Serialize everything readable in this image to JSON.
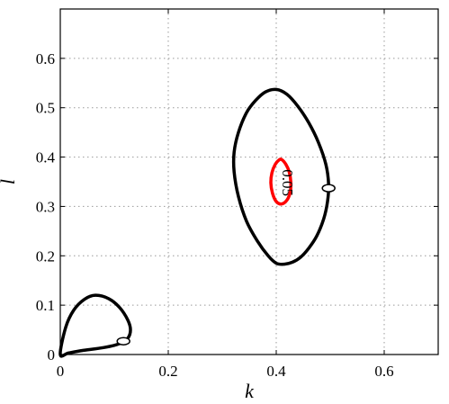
{
  "chart_data": {
    "type": "line",
    "title": "",
    "xlabel": "k",
    "ylabel": "l",
    "xlim": [
      0,
      0.7
    ],
    "ylim": [
      0,
      0.7
    ],
    "xticks": [
      0,
      0.2,
      0.4,
      0.6
    ],
    "yticks": [
      0,
      0.1,
      0.2,
      0.3,
      0.4,
      0.5,
      0.6
    ],
    "xtick_labels": [
      "0",
      "0.2",
      "0.4",
      "0.6"
    ],
    "ytick_labels": [
      "0",
      "0.1",
      "0.2",
      "0.3",
      "0.4",
      "0.5",
      "0.6"
    ],
    "grid": true,
    "legend": "none",
    "series": [
      {
        "color": "#000000",
        "closed": true,
        "x": [
          0.0,
          0.01,
          0.025,
          0.045,
          0.065,
          0.09,
          0.11,
          0.125,
          0.13,
          0.125,
          0.11,
          0.08,
          0.04,
          0.015,
          0.0
        ],
        "y": [
          0.0,
          0.055,
          0.09,
          0.112,
          0.12,
          0.113,
          0.095,
          0.07,
          0.05,
          0.033,
          0.022,
          0.014,
          0.008,
          0.003,
          0.0
        ]
      },
      {
        "color": "#000000",
        "closed": true,
        "x": [
          0.4,
          0.42,
          0.44,
          0.46,
          0.478,
          0.492,
          0.497,
          0.495,
          0.488,
          0.475,
          0.46,
          0.445,
          0.43,
          0.415,
          0.4,
          0.385,
          0.365,
          0.345,
          0.33,
          0.322,
          0.322,
          0.33,
          0.345,
          0.362,
          0.38,
          0.4
        ],
        "y": [
          0.537,
          0.527,
          0.503,
          0.47,
          0.43,
          0.385,
          0.345,
          0.31,
          0.275,
          0.24,
          0.215,
          0.197,
          0.187,
          0.183,
          0.185,
          0.2,
          0.23,
          0.27,
          0.32,
          0.37,
          0.41,
          0.45,
          0.49,
          0.515,
          0.532,
          0.537
        ]
      },
      {
        "color": "#ff0000",
        "closed": true,
        "x": [
          0.41,
          0.418,
          0.424,
          0.427,
          0.426,
          0.42,
          0.41,
          0.4,
          0.393,
          0.39,
          0.392,
          0.398,
          0.405,
          0.41
        ],
        "y": [
          0.395,
          0.385,
          0.37,
          0.35,
          0.33,
          0.313,
          0.305,
          0.31,
          0.327,
          0.348,
          0.368,
          0.385,
          0.394,
          0.395
        ]
      }
    ],
    "markers": [
      {
        "x": 0.117,
        "y": 0.027
      },
      {
        "x": 0.497,
        "y": 0.337
      }
    ],
    "annotations": [
      {
        "text": "0.05",
        "x": 0.412,
        "y": 0.375,
        "rotation": 90
      }
    ]
  }
}
